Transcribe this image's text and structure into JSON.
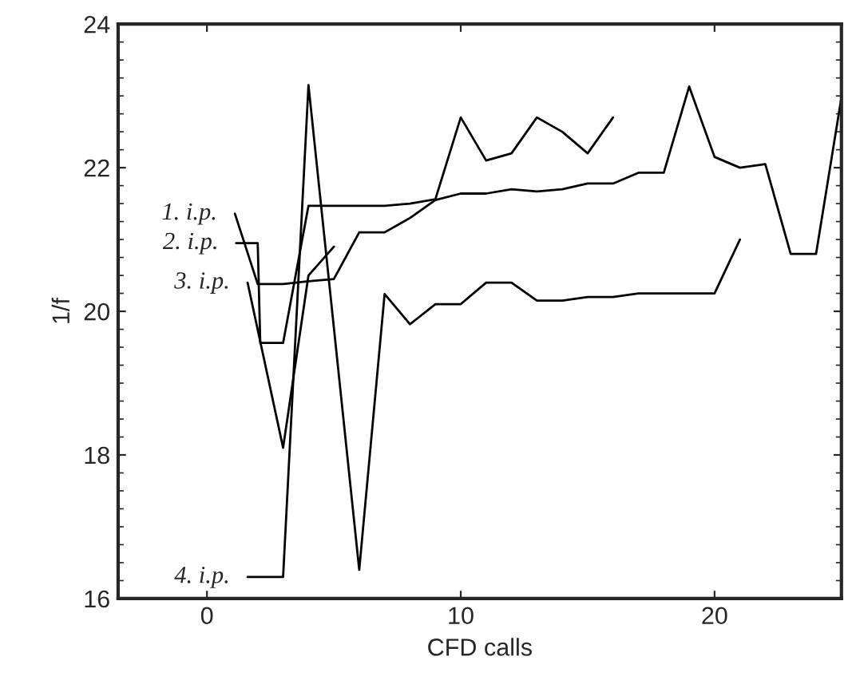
{
  "chart_data": {
    "type": "line",
    "xlabel": "CFD calls",
    "ylabel": "1/f",
    "xlim": [
      -3.5,
      25
    ],
    "ylim": [
      16,
      24
    ],
    "xticks": [
      0,
      10,
      20
    ],
    "yticks": [
      16,
      18,
      20,
      22,
      24
    ],
    "grid": false,
    "legend": false,
    "marker": "none",
    "line_style": "solid",
    "series": [
      {
        "name": "1. i.p.",
        "color": "#000000",
        "x": [
          1.1,
          2,
          3,
          4,
          5,
          6,
          7,
          8,
          9,
          10,
          11,
          12,
          13,
          14,
          15,
          16,
          17,
          18,
          19,
          20,
          21,
          22,
          23,
          24,
          25
        ],
        "values": [
          21.36,
          20.38,
          20.38,
          20.42,
          20.45,
          21.1,
          21.1,
          21.3,
          21.55,
          21.64,
          21.64,
          21.7,
          21.67,
          21.7,
          21.78,
          21.78,
          21.93,
          21.93,
          23.13,
          22.15,
          22.0,
          22.05,
          20.8,
          20.8,
          22.98
        ]
      },
      {
        "name": "2. i.p.",
        "color": "#000000",
        "x": [
          1.15,
          2,
          2.1,
          3,
          4,
          5,
          6,
          7,
          8,
          9,
          10,
          11,
          12,
          13,
          14,
          15,
          16
        ],
        "values": [
          20.95,
          20.95,
          19.56,
          19.56,
          21.47,
          21.47,
          21.47,
          21.47,
          21.5,
          21.56,
          22.7,
          22.1,
          22.2,
          22.7,
          22.5,
          22.2,
          22.7
        ]
      },
      {
        "name": "3. i.p.",
        "color": "#000000",
        "x": [
          1.6,
          3,
          4,
          5
        ],
        "values": [
          20.4,
          18.1,
          20.5,
          20.9
        ]
      },
      {
        "name": "4. i.p.",
        "color": "#000000",
        "x": [
          1.6,
          3,
          4,
          6,
          7,
          8,
          9,
          10,
          11,
          12,
          13,
          14,
          15,
          16,
          17,
          18,
          19,
          20,
          21
        ],
        "values": [
          16.3,
          16.3,
          23.15,
          16.4,
          20.24,
          19.82,
          20.1,
          20.1,
          20.4,
          20.4,
          20.15,
          20.15,
          20.2,
          20.2,
          20.25,
          20.25,
          20.25,
          20.25,
          21.0
        ]
      }
    ]
  }
}
